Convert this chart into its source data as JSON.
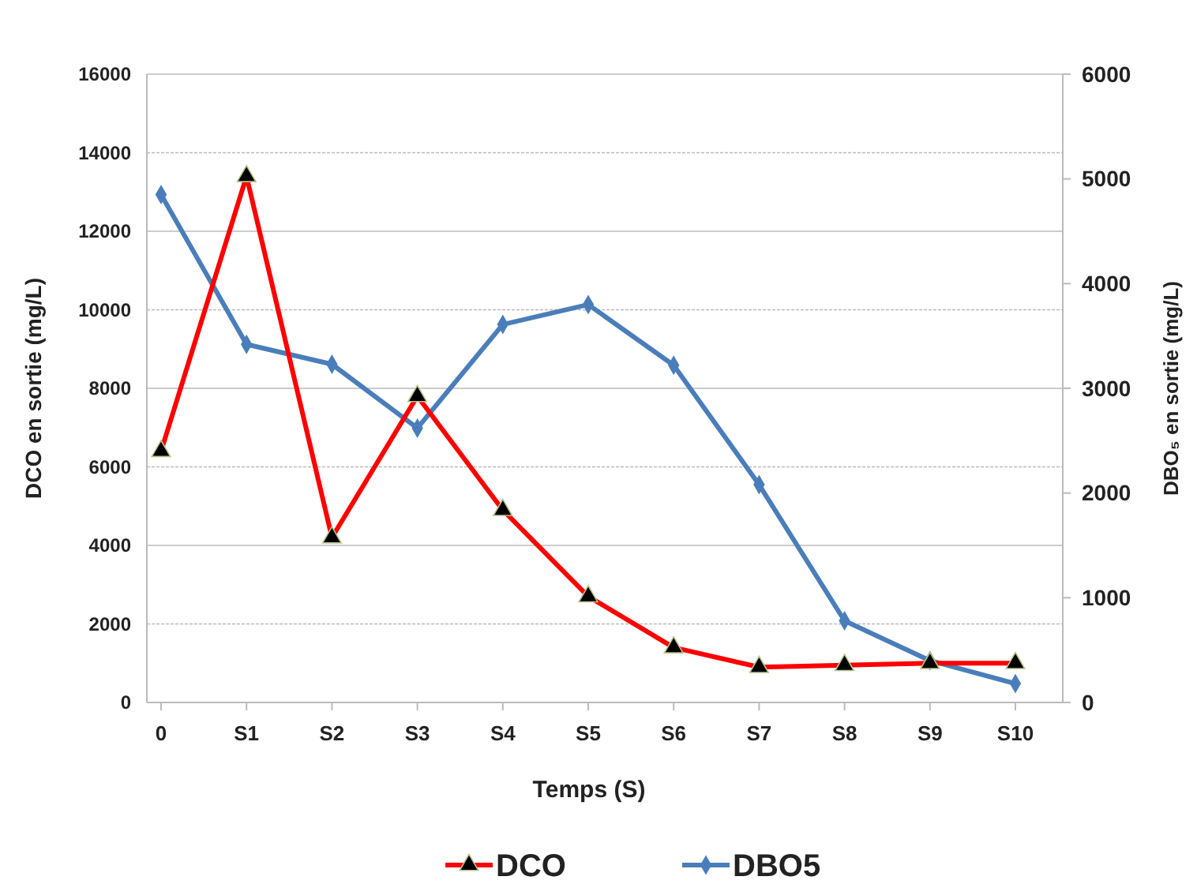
{
  "chart_data": {
    "type": "line",
    "xlabel": "Temps (S)",
    "ylabel": "DCO en sortie  (mg/L)",
    "y2label": "DBO₅ en sortie  (mg/L)",
    "categories": [
      "0",
      "S1",
      "S2",
      "S3",
      "S4",
      "S5",
      "S6",
      "S7",
      "S8",
      "S9",
      "S10"
    ],
    "series": [
      {
        "name": "DCO",
        "color": "#ff0000",
        "marker": "triangle",
        "values": [
          6400,
          13400,
          4200,
          7800,
          4900,
          2700,
          1400,
          900,
          950,
          1000,
          1000
        ]
      },
      {
        "name": "DBO5",
        "color": "#4a7ebb",
        "marker": "diamond",
        "axis": "y2",
        "values": [
          4850,
          3420,
          3230,
          2620,
          3610,
          3800,
          3220,
          2080,
          780,
          400,
          180
        ]
      }
    ],
    "ylim": [
      0,
      16000
    ],
    "yticks": [
      0,
      2000,
      4000,
      6000,
      8000,
      10000,
      12000,
      14000,
      16000
    ],
    "y2lim": [
      0,
      6000
    ],
    "y2ticks": [
      0,
      1000,
      2000,
      3000,
      4000,
      5000,
      6000
    ],
    "grid": "y",
    "legend": "bottom",
    "line_style": "solid"
  }
}
